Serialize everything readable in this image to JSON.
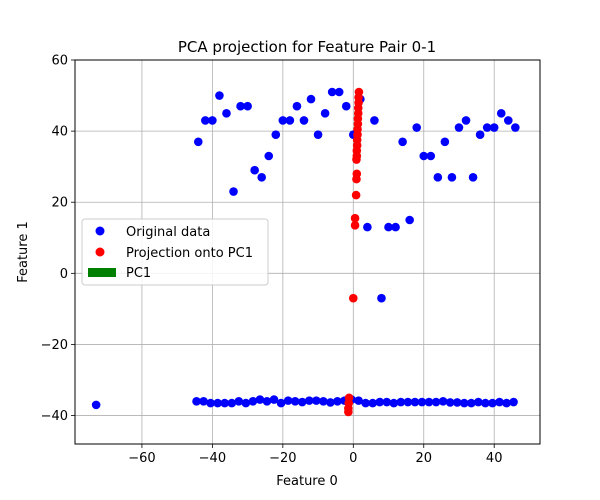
{
  "chart_data": {
    "type": "scatter",
    "title": "PCA projection for Feature Pair 0-1",
    "xlabel": "Feature 0",
    "ylabel": "Feature 1",
    "xlim": [
      -79,
      53
    ],
    "ylim": [
      -48,
      60
    ],
    "xticks": [
      -60,
      -40,
      -20,
      0,
      20,
      40
    ],
    "yticks": [
      -40,
      -20,
      0,
      20,
      40,
      60
    ],
    "xtick_labels": [
      "−60",
      "−40",
      "−20",
      "0",
      "20",
      "40"
    ],
    "ytick_labels": [
      "−40",
      "−20",
      "0",
      "20",
      "40",
      "60"
    ],
    "grid": true,
    "legend": {
      "position": "center-left",
      "entries": [
        {
          "label": "Original data",
          "marker": "circle",
          "color": "#0000ff"
        },
        {
          "label": "Projection onto PC1",
          "marker": "circle",
          "color": "#ff0000"
        },
        {
          "label": "PC1",
          "marker": "bar",
          "color": "#008000"
        }
      ]
    },
    "series": [
      {
        "name": "Original data",
        "color": "#0000ff",
        "points": [
          [
            -44,
            37
          ],
          [
            -42,
            43
          ],
          [
            -40,
            43
          ],
          [
            -38,
            50
          ],
          [
            -36,
            45
          ],
          [
            -34,
            23
          ],
          [
            -32,
            47
          ],
          [
            -30,
            47
          ],
          [
            -28,
            29
          ],
          [
            -26,
            27
          ],
          [
            -24,
            33
          ],
          [
            -22,
            39
          ],
          [
            -20,
            43
          ],
          [
            -18,
            43
          ],
          [
            -16,
            47
          ],
          [
            -14,
            43
          ],
          [
            -12,
            49
          ],
          [
            -10,
            39
          ],
          [
            -8,
            45
          ],
          [
            -6,
            51
          ],
          [
            -4,
            51
          ],
          [
            -2,
            47
          ],
          [
            0,
            39
          ],
          [
            2,
            49
          ],
          [
            4,
            13
          ],
          [
            6,
            43
          ],
          [
            8,
            -7
          ],
          [
            10,
            13
          ],
          [
            12,
            13
          ],
          [
            14,
            37
          ],
          [
            16,
            15
          ],
          [
            18,
            41
          ],
          [
            20,
            33
          ],
          [
            22,
            33
          ],
          [
            24,
            27
          ],
          [
            26,
            37
          ],
          [
            28,
            27
          ],
          [
            30,
            41
          ],
          [
            32,
            43
          ],
          [
            34,
            27
          ],
          [
            36,
            39
          ],
          [
            38,
            41
          ],
          [
            40,
            41
          ],
          [
            42,
            45
          ],
          [
            44,
            43
          ],
          [
            46,
            41
          ],
          [
            -73,
            -37
          ],
          [
            -44.5,
            -36
          ],
          [
            -42.5,
            -36
          ],
          [
            -40.5,
            -36.5
          ],
          [
            -38.5,
            -36.5
          ],
          [
            -36.5,
            -36.5
          ],
          [
            -34.5,
            -36.5
          ],
          [
            -32.5,
            -36
          ],
          [
            -30.5,
            -36.5
          ],
          [
            -28.5,
            -36
          ],
          [
            -26.5,
            -35.5
          ],
          [
            -24.5,
            -36
          ],
          [
            -22.5,
            -35.5
          ],
          [
            -20.5,
            -36.5
          ],
          [
            -18.5,
            -35.8
          ],
          [
            -16.5,
            -36
          ],
          [
            -14.5,
            -36.2
          ],
          [
            -12.5,
            -35.8
          ],
          [
            -10.5,
            -35.8
          ],
          [
            -8.5,
            -36
          ],
          [
            -6.5,
            -36.3
          ],
          [
            -4.5,
            -36
          ],
          [
            -2.5,
            -35.8
          ],
          [
            -0.5,
            -35.5
          ],
          [
            1.5,
            -35.8
          ],
          [
            3.5,
            -36.5
          ],
          [
            5.5,
            -36.5
          ],
          [
            7.5,
            -36.2
          ],
          [
            9.5,
            -36.2
          ],
          [
            11.5,
            -36.5
          ],
          [
            13.5,
            -36.2
          ],
          [
            15.5,
            -36.2
          ],
          [
            17.5,
            -36.2
          ],
          [
            19.5,
            -36.2
          ],
          [
            21.5,
            -36.2
          ],
          [
            23.5,
            -36.2
          ],
          [
            25.5,
            -36
          ],
          [
            27.5,
            -36.3
          ],
          [
            29.5,
            -36.3
          ],
          [
            31.5,
            -36.5
          ],
          [
            33.5,
            -36.5
          ],
          [
            35.5,
            -36.2
          ],
          [
            37.5,
            -36.5
          ],
          [
            39.5,
            -36.5
          ],
          [
            41.5,
            -36.2
          ],
          [
            43.5,
            -36.5
          ],
          [
            45.5,
            -36.2
          ]
        ]
      },
      {
        "name": "Projection onto PC1",
        "color": "#ff0000",
        "points": [
          [
            1.6,
            51
          ],
          [
            1.5,
            49.5
          ],
          [
            1.5,
            48
          ],
          [
            1.4,
            46.5
          ],
          [
            1.4,
            45
          ],
          [
            1.3,
            43.5
          ],
          [
            1.3,
            42
          ],
          [
            1.2,
            40.5
          ],
          [
            1.2,
            39
          ],
          [
            1.1,
            37.5
          ],
          [
            1.1,
            36
          ],
          [
            1.0,
            34.5
          ],
          [
            1.0,
            33
          ],
          [
            0.9,
            32
          ],
          [
            1.0,
            28
          ],
          [
            0.9,
            26.5
          ],
          [
            0.8,
            22
          ],
          [
            0.5,
            15.5
          ],
          [
            0.5,
            13.5
          ],
          [
            0,
            -7
          ],
          [
            -1.2,
            -35
          ],
          [
            -1.3,
            -36.5
          ],
          [
            -1.4,
            -38
          ],
          [
            -1.4,
            -39
          ]
        ]
      }
    ]
  }
}
